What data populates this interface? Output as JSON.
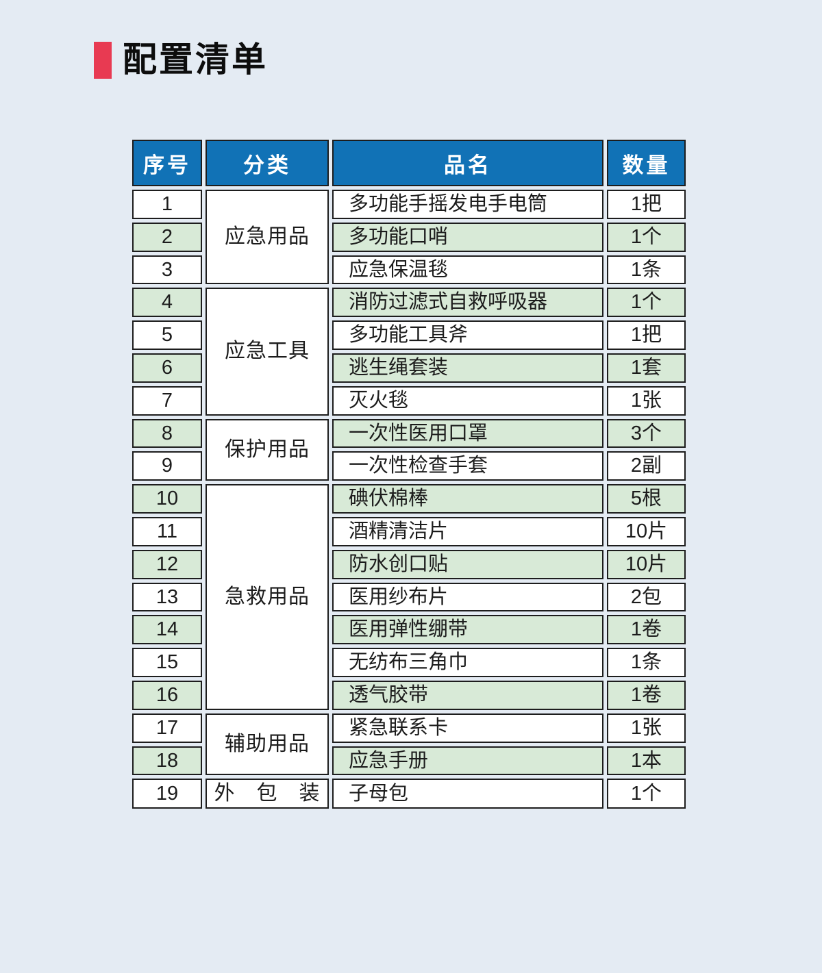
{
  "title": "配置清单",
  "colors": {
    "page_bg": "#e4ebf3",
    "accent_red": "#e83a52",
    "header_blue": "#1172b6",
    "row_green": "#d8ead7",
    "border_dark": "#1d1d1d"
  },
  "table": {
    "headers": [
      "序号",
      "分类",
      "品名",
      "数量"
    ],
    "categories": [
      {
        "label": "应急用品",
        "rowspan": 3
      },
      {
        "label": "应急工具",
        "rowspan": 4
      },
      {
        "label": "保护用品",
        "rowspan": 2
      },
      {
        "label": "急救用品",
        "rowspan": 7
      },
      {
        "label": "辅助用品",
        "rowspan": 2
      },
      {
        "label": "外　包　装",
        "rowspan": 1
      }
    ],
    "rows": [
      {
        "no": "1",
        "name": "多功能手摇发电手电筒",
        "qty": "1把"
      },
      {
        "no": "2",
        "name": "多功能口哨",
        "qty": "1个"
      },
      {
        "no": "3",
        "name": "应急保温毯",
        "qty": "1条"
      },
      {
        "no": "4",
        "name": "消防过滤式自救呼吸器",
        "qty": "1个"
      },
      {
        "no": "5",
        "name": "多功能工具斧",
        "qty": "1把"
      },
      {
        "no": "6",
        "name": "逃生绳套装",
        "qty": "1套"
      },
      {
        "no": "7",
        "name": "灭火毯",
        "qty": "1张"
      },
      {
        "no": "8",
        "name": "一次性医用口罩",
        "qty": "3个"
      },
      {
        "no": "9",
        "name": "一次性检查手套",
        "qty": "2副"
      },
      {
        "no": "10",
        "name": "碘伏棉棒",
        "qty": "5根"
      },
      {
        "no": "11",
        "name": "酒精清洁片",
        "qty": "10片"
      },
      {
        "no": "12",
        "name": "防水创口贴",
        "qty": "10片"
      },
      {
        "no": "13",
        "name": "医用纱布片",
        "qty": "2包"
      },
      {
        "no": "14",
        "name": "医用弹性绷带",
        "qty": "1卷"
      },
      {
        "no": "15",
        "name": "无纺布三角巾",
        "qty": "1条"
      },
      {
        "no": "16",
        "name": "透气胶带",
        "qty": "1卷"
      },
      {
        "no": "17",
        "name": "紧急联系卡",
        "qty": "1张"
      },
      {
        "no": "18",
        "name": "应急手册",
        "qty": "1本"
      },
      {
        "no": "19",
        "name": "子母包",
        "qty": "1个"
      }
    ]
  }
}
